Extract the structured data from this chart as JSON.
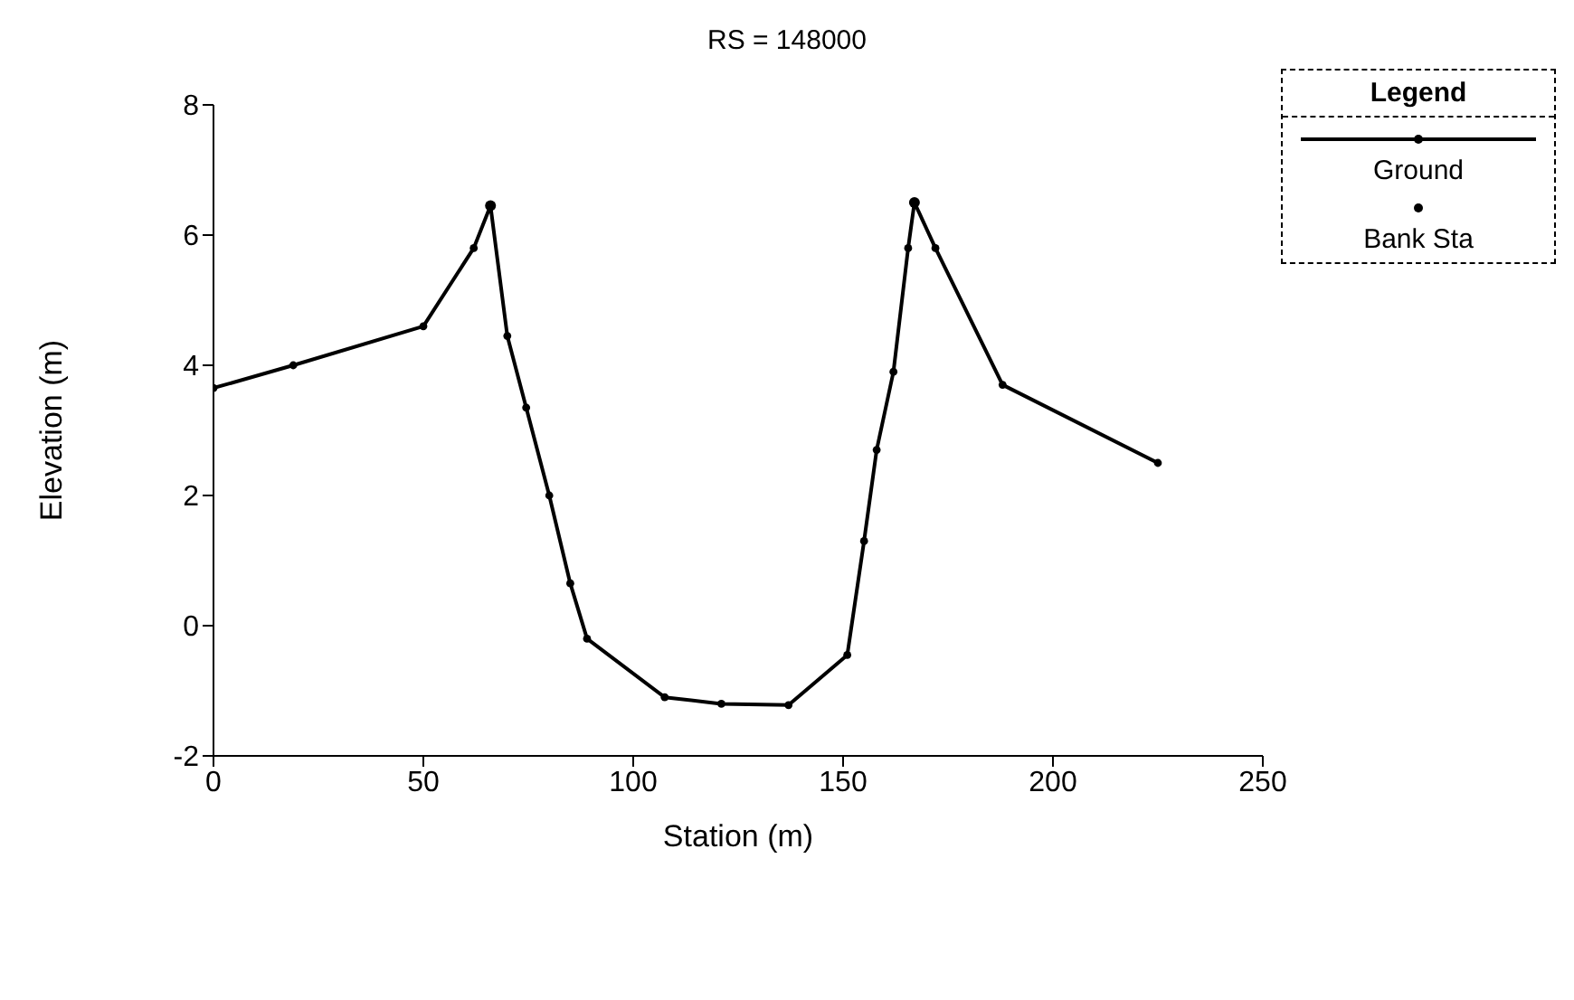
{
  "chart_data": {
    "type": "line",
    "title": "RS = 148000",
    "xlabel": "Station (m)",
    "ylabel": "Elevation (m)",
    "legend_title": "Legend",
    "legend": "top right",
    "marker": "circle",
    "line_style": "solid",
    "grid": false,
    "xlim": [
      0,
      250
    ],
    "xticks": [
      0,
      50,
      100,
      150,
      200,
      250
    ],
    "ylim": [
      -2,
      8
    ],
    "yticks": [
      -2,
      0,
      2,
      4,
      6,
      8
    ],
    "series": [
      {
        "name": "Ground",
        "color": "#000000",
        "x": [
          0,
          19,
          50,
          62,
          66,
          70,
          74.5,
          80,
          85,
          89,
          107.5,
          121,
          137,
          151,
          155,
          158,
          162,
          165.5,
          167,
          172,
          188,
          225
        ],
        "values": [
          3.65,
          4.0,
          4.6,
          5.8,
          6.45,
          4.45,
          3.35,
          2.0,
          0.65,
          -0.2,
          -1.1,
          -1.2,
          -1.22,
          -0.45,
          1.3,
          2.7,
          3.9,
          5.8,
          6.5,
          5.8,
          3.7,
          2.5
        ]
      },
      {
        "name": "Bank Sta",
        "type": "scatter",
        "color": "#000000",
        "x": [
          66,
          167
        ],
        "values": [
          6.45,
          6.5
        ]
      }
    ]
  }
}
